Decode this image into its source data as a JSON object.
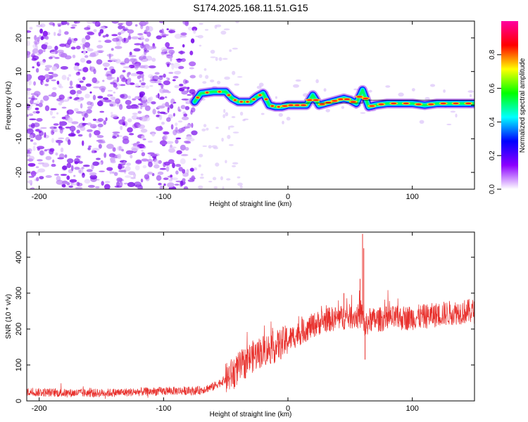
{
  "figure_title": "S174.2025.168.11.51.G15",
  "chart_data": [
    {
      "type": "heatmap",
      "xlabel": "Height of straight line (km)",
      "ylabel": "Frequency (Hz)",
      "xlim": [
        -210,
        150
      ],
      "ylim": [
        -25,
        25
      ],
      "xticks": [
        -200,
        -100,
        0,
        100
      ],
      "yticks": [
        -20,
        -10,
        0,
        10,
        20
      ],
      "grid": false,
      "colorbar": {
        "label": "Normalized spectral amplitude",
        "range": [
          0,
          1
        ],
        "ticks": [
          "0.0",
          "0.2",
          "0.4",
          "0.6",
          "0.8"
        ],
        "tick_values": [
          0.0,
          0.2,
          0.4,
          0.6,
          0.8
        ],
        "colors": [
          "#ffffff",
          "#8c00ff",
          "#0000ff",
          "#00ffff",
          "#00ff00",
          "#ffff00",
          "#ff0000",
          "#ff00a0"
        ]
      },
      "noise_region_x": [
        -210,
        -75
      ],
      "signal_trace": {
        "x": [
          -75,
          -70,
          -60,
          -50,
          -45,
          -40,
          -35,
          -30,
          -25,
          -20,
          -15,
          -10,
          -5,
          0,
          5,
          10,
          15,
          20,
          25,
          30,
          35,
          40,
          45,
          50,
          55,
          60,
          65,
          70,
          80,
          90,
          100,
          110,
          120,
          130,
          140,
          150
        ],
        "freq_hz": [
          1.0,
          3.5,
          4.0,
          4.0,
          2.0,
          1.0,
          1.0,
          1.0,
          2.5,
          3.5,
          0.0,
          -0.5,
          -0.5,
          0.0,
          0.0,
          0.0,
          0.0,
          3.0,
          0.0,
          0.5,
          1.0,
          1.5,
          2.0,
          1.5,
          0.5,
          4.5,
          -0.5,
          0.0,
          0.5,
          0.5,
          0.5,
          0.0,
          0.5,
          0.5,
          0.5,
          0.5
        ]
      }
    },
    {
      "type": "line",
      "xlabel": "Height of straight line (km)",
      "ylabel": "SNR (10 * v/v)",
      "xlim": [
        -210,
        150
      ],
      "ylim": [
        0,
        470
      ],
      "xticks": [
        -200,
        -100,
        0,
        100
      ],
      "yticks": [
        0,
        100,
        200,
        300,
        400
      ],
      "grid": false,
      "series": [
        {
          "color": "#e8302c",
          "x": [
            -210,
            -180,
            -150,
            -120,
            -90,
            -75,
            -70,
            -60,
            -50,
            -40,
            -30,
            -20,
            -10,
            0,
            10,
            20,
            30,
            40,
            50,
            55,
            58,
            60,
            62,
            65,
            70,
            80,
            90,
            100,
            110,
            120,
            130,
            140,
            150
          ],
          "values": [
            25,
            22,
            22,
            25,
            28,
            28,
            30,
            40,
            60,
            90,
            120,
            140,
            150,
            170,
            190,
            210,
            225,
            230,
            235,
            235,
            235,
            240,
            200,
            225,
            225,
            230,
            230,
            232,
            235,
            240,
            245,
            248,
            250
          ],
          "spikes": [
            {
              "x": 60,
              "y": 465
            },
            {
              "x": 61,
              "y": 425
            },
            {
              "x": 58,
              "y": 340
            },
            {
              "x": 62,
              "y": 115
            },
            {
              "x": 45,
              "y": 300
            }
          ]
        }
      ]
    }
  ]
}
